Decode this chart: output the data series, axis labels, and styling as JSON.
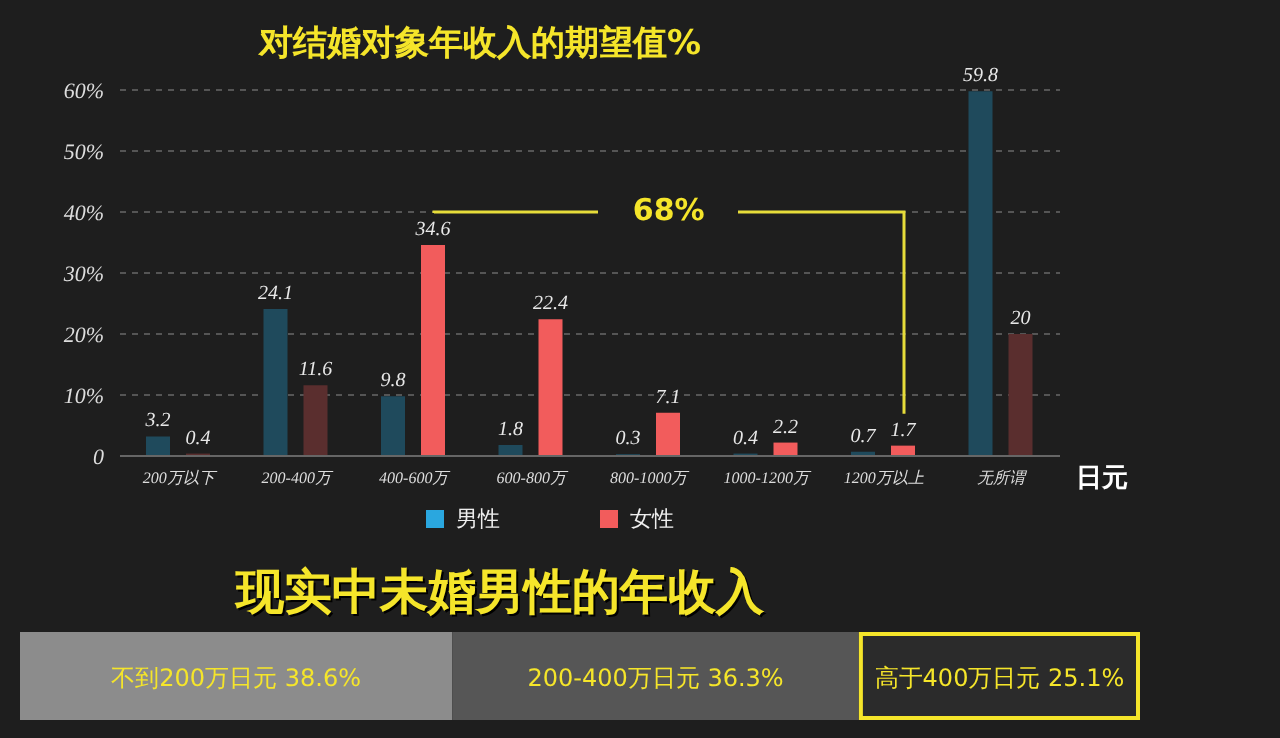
{
  "chart_data": [
    {
      "type": "bar",
      "title": "对结婚对象年收入的期望值%",
      "xlabel": "日元",
      "categories": [
        "200万以下",
        "200-400万",
        "400-600万",
        "600-800万",
        "800-1000万",
        "1000-1200万",
        "1200万以上",
        "无所谓"
      ],
      "series": [
        {
          "name": "男性",
          "color": "#2aa7df",
          "colors": [
            "#1f4a5c",
            "#1f4a5c",
            "#1f4a5c",
            "#1f4a5c",
            "#1f4a5c",
            "#1f4a5c",
            "#1f4a5c",
            "#1f4a5c"
          ],
          "values": [
            3.2,
            24.1,
            9.8,
            1.8,
            0.3,
            0.4,
            0.7,
            59.8
          ]
        },
        {
          "name": "女性",
          "color": "#f25c5c",
          "colors": [
            "#5a2e2e",
            "#5a2e2e",
            "#f25c5c",
            "#f25c5c",
            "#f25c5c",
            "#f25c5c",
            "#f25c5c",
            "#5a2e2e"
          ],
          "values": [
            0.4,
            11.6,
            34.6,
            22.4,
            7.1,
            2.2,
            1.7,
            20
          ]
        }
      ],
      "ylim": [
        0,
        60
      ],
      "yticks": [
        0,
        {
          "value": 10,
          "label": "10%"
        },
        {
          "value": 20,
          "label": "20%"
        },
        {
          "value": 30,
          "label": "30%"
        },
        {
          "value": 40,
          "label": "40%"
        },
        {
          "value": 50,
          "label": "50%"
        },
        {
          "value": 60,
          "label": "60%"
        }
      ],
      "grid": "y",
      "legend": "bottom",
      "data_labels": true,
      "annotations": [
        "68%"
      ]
    },
    {
      "type": "bar",
      "title": "现实中未婚男性的年收入",
      "orientation": "horizontal",
      "stacked": true,
      "categories": [
        null
      ],
      "xlim": [
        0,
        100
      ],
      "series": [
        {
          "color": "#8c8c8c",
          "values": [
            38.6
          ],
          "value_labels": [
            "不到200万日元  38.6%"
          ]
        },
        {
          "color": "#565656",
          "values": [
            36.3
          ],
          "value_labels": [
            "200-400万日元  36.3%"
          ]
        },
        {
          "color": "#2b2b2b",
          "values": [
            25.1
          ],
          "value_labels": [
            "高于400万日元  25.1%"
          ]
        }
      ]
    }
  ]
}
